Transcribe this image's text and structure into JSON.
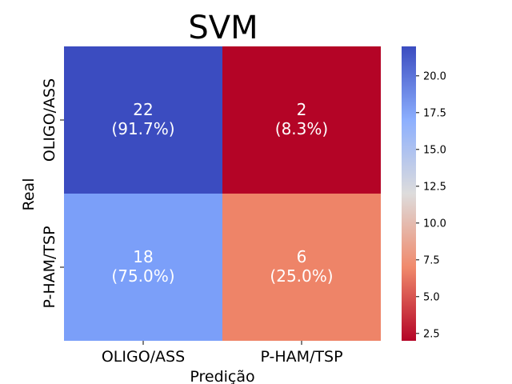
{
  "chart_data": {
    "type": "heatmap",
    "title": "SVM",
    "xlabel": "Predição",
    "ylabel": "Real",
    "x_categories": [
      "OLIGO/ASS",
      "P-HAM/TSP"
    ],
    "y_categories": [
      "OLIGO/ASS",
      "P-HAM/TSP"
    ],
    "cells": [
      {
        "row": 0,
        "col": 0,
        "value": 22,
        "label": "22",
        "percent": "(91.7%)",
        "color": "#3b4cc0"
      },
      {
        "row": 0,
        "col": 1,
        "value": 2,
        "label": "2",
        "percent": "(8.3%)",
        "color": "#b40426"
      },
      {
        "row": 1,
        "col": 0,
        "value": 18,
        "label": "18",
        "percent": "(75.0%)",
        "color": "#7b9ff9"
      },
      {
        "row": 1,
        "col": 1,
        "value": 6,
        "label": "6",
        "percent": "(25.0%)",
        "color": "#ee8468"
      }
    ],
    "colormap": "coolwarm",
    "colorbar": {
      "range": [
        2,
        22
      ],
      "ticks": [
        2.5,
        5.0,
        7.5,
        10.0,
        12.5,
        15.0,
        17.5,
        20.0
      ],
      "tick_labels": [
        "2.5",
        "5.0",
        "7.5",
        "10.0",
        "12.5",
        "15.0",
        "17.5",
        "20.0"
      ]
    },
    "grid": false
  }
}
